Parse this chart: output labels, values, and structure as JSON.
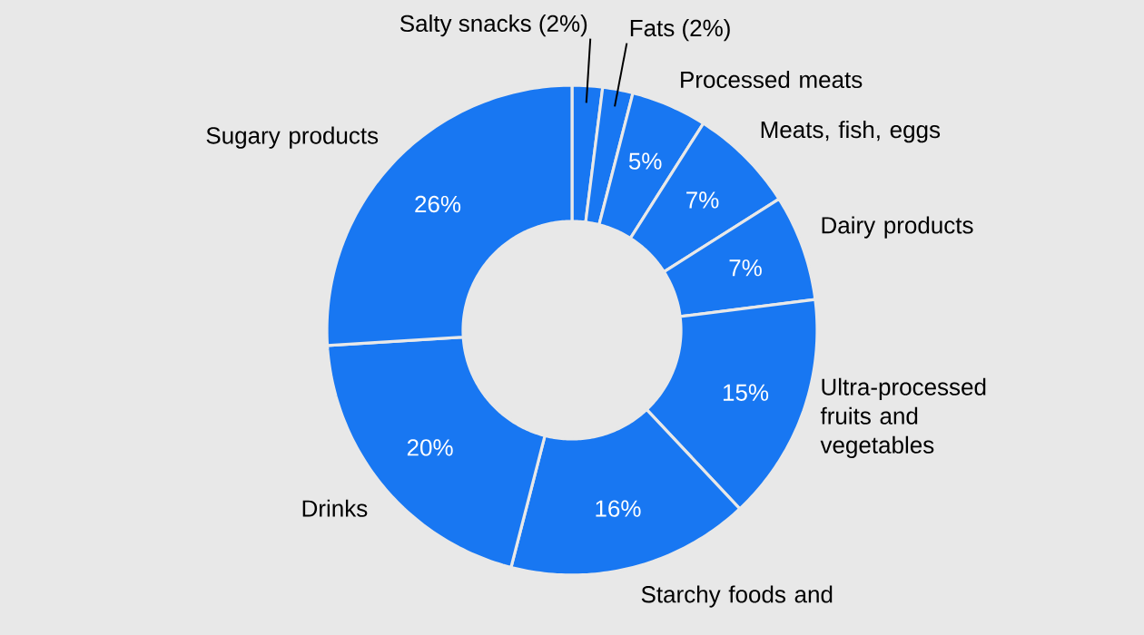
{
  "chart_data": {
    "type": "donut",
    "categories": [
      "Salty snacks (2%)",
      "Fats (2%)",
      "Processed meats",
      "Meats, fish, eggs",
      "Dairy products",
      "Ultra-processed fruits and vegetables",
      "Starchy foods and",
      "Drinks",
      "Sugary products"
    ],
    "values": [
      2,
      2,
      5,
      7,
      7,
      15,
      16,
      20,
      26
    ],
    "value_labels": [
      null,
      null,
      "5%",
      "7%",
      "7%",
      "15%",
      "16%",
      "20%",
      "26%"
    ],
    "color": "#1877f2"
  }
}
